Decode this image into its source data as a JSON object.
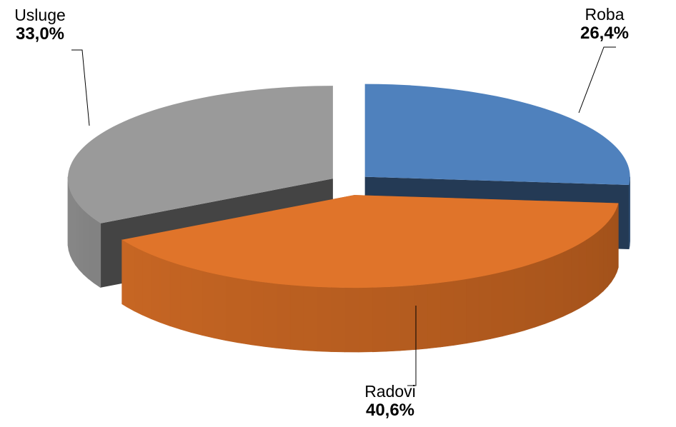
{
  "chart_data": {
    "type": "pie",
    "variant": "3d-exploded",
    "title": "",
    "slices": [
      {
        "label": "Roba",
        "value": 26.4,
        "display": "26,4%",
        "color": "#4f81bd",
        "side_color": "#243a55"
      },
      {
        "label": "Radovi",
        "value": 40.6,
        "display": "40,6%",
        "color": "#e0742a",
        "side_color": "#8a4414"
      },
      {
        "label": "Usluge",
        "value": 33.0,
        "display": "33,0%",
        "color": "#9a9a9a",
        "side_color": "#444444"
      }
    ],
    "legend": "none",
    "data_labels": "outside-with-leader-lines"
  }
}
